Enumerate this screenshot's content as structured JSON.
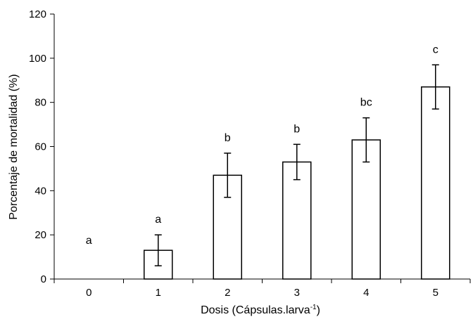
{
  "chart_data": {
    "type": "bar",
    "categories": [
      "0",
      "1",
      "2",
      "3",
      "4",
      "5"
    ],
    "values": [
      0,
      13,
      47,
      53,
      63,
      87
    ],
    "error_bars": [
      {
        "low": 0,
        "high": 0
      },
      {
        "low": 6,
        "high": 20
      },
      {
        "low": 37,
        "high": 57
      },
      {
        "low": 45,
        "high": 61
      },
      {
        "low": 53,
        "high": 73
      },
      {
        "low": 77,
        "high": 97
      }
    ],
    "significance_labels": [
      "a",
      "a",
      "b",
      "b",
      "bc",
      "c"
    ],
    "xlabel": "Dosis (Cápsulas.larva",
    "xlabel_superscript": "-1",
    "xlabel_close": ")",
    "ylabel": "Porcentaje de mortalidad (%)",
    "ylim": [
      0,
      120
    ],
    "yticks": [
      0,
      20,
      40,
      60,
      80,
      100,
      120
    ],
    "grid": false,
    "legend": "none",
    "colors": {
      "bar_fill": "#ffffff",
      "bar_stroke": "#000000",
      "axis": "#000000"
    }
  }
}
